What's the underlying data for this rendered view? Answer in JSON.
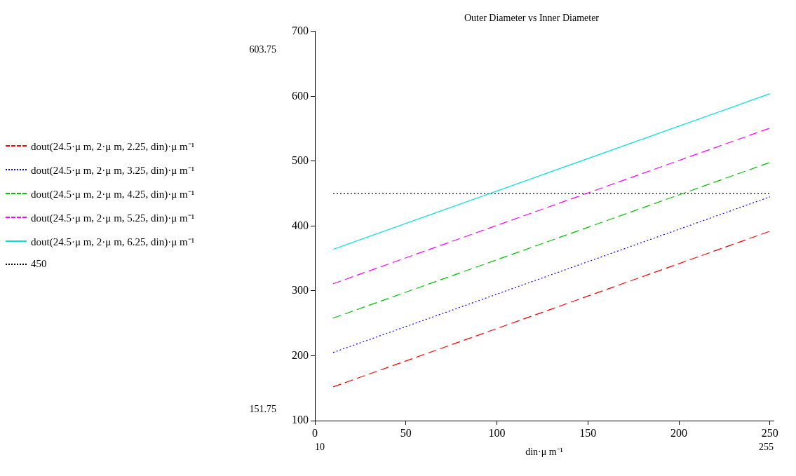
{
  "chart_data": {
    "type": "line",
    "title": "Outer Diameter vs Inner Diameter",
    "xlabel": "din·μ m⁻¹",
    "xlim": [
      0,
      252
    ],
    "xticks": [
      0,
      50,
      100,
      150,
      200,
      250
    ],
    "ylim": [
      100,
      700
    ],
    "yticks": [
      100,
      200,
      300,
      400,
      500,
      600,
      700
    ],
    "grid": false,
    "legend": "left",
    "marker": "none",
    "annotations": [
      "603.75",
      "151.75",
      "10",
      "255"
    ],
    "series": [
      {
        "name": "dout(24.5·μ m, 2·μ m, 2.25, din)·μ m⁻¹",
        "color": "#ff0000",
        "line_style": "dashed",
        "x": [
          10,
          130,
          250
        ],
        "values": [
          152,
          272,
          392
        ]
      },
      {
        "name": "dout(24.5·μ m, 2·μ m, 3.25, din)·μ m⁻¹",
        "color": "#0000ff",
        "line_style": "dotted",
        "x": [
          10,
          130,
          250
        ],
        "values": [
          205,
          325,
          445
        ]
      },
      {
        "name": "dout(24.5·μ m, 2·μ m, 4.25, din)·μ m⁻¹",
        "color": "#00c000",
        "line_style": "dashed",
        "x": [
          10,
          130,
          250
        ],
        "values": [
          258,
          378,
          498
        ]
      },
      {
        "name": "dout(24.5·μ m, 2·μ m, 5.25, din)·μ m⁻¹",
        "color": "#ff00ff",
        "line_style": "dashed",
        "x": [
          10,
          130,
          250
        ],
        "values": [
          311,
          431,
          551
        ]
      },
      {
        "name": "dout(24.5·μ m, 2·μ m, 6.25, din)·μ m⁻¹",
        "color": "#00e0e0",
        "line_style": "solid",
        "x": [
          10,
          130,
          250
        ],
        "values": [
          364,
          484,
          604
        ]
      },
      {
        "name": "450",
        "color": "#000000",
        "line_style": "dotted",
        "x": [
          10,
          250
        ],
        "values": [
          450,
          450
        ]
      }
    ]
  }
}
